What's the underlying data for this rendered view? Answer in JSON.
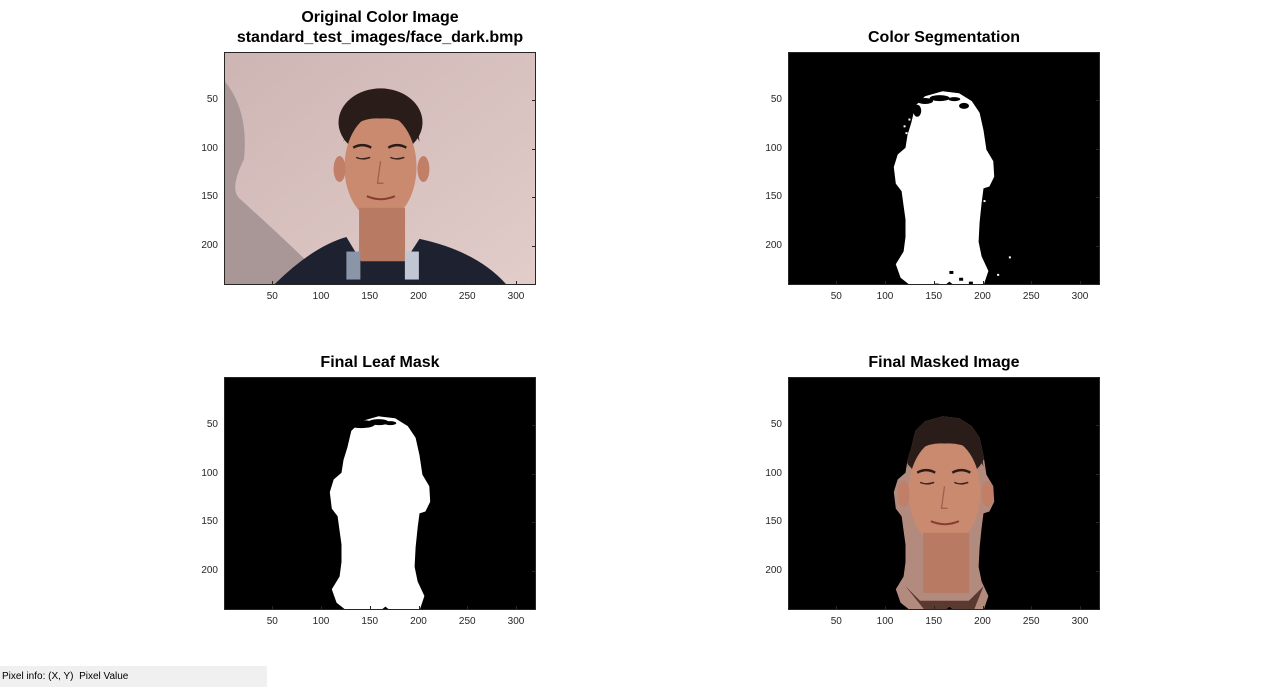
{
  "figure": {
    "panels": [
      {
        "id": "original",
        "title_lines": [
          "Original Color Image",
          "standard_test_images/face_dark.bmp"
        ],
        "kind": "photo"
      },
      {
        "id": "segmentation",
        "title_lines": [
          "Color Segmentation"
        ],
        "kind": "mask-noisy"
      },
      {
        "id": "leafmask",
        "title_lines": [
          "Final Leaf Mask"
        ],
        "kind": "mask-clean"
      },
      {
        "id": "masked",
        "title_lines": [
          "Final Masked Image"
        ],
        "kind": "masked-photo"
      }
    ],
    "x_ticks": [
      "50",
      "100",
      "150",
      "200",
      "250",
      "300"
    ],
    "y_ticks": [
      "50",
      "100",
      "150",
      "200"
    ],
    "colors": {
      "background_wall": "#d8c2c0",
      "mask_fg": "#ffffff",
      "mask_bg": "#000000",
      "skin": "#c98a70",
      "hair": "#2a1c18",
      "shirt": "#1e2230"
    }
  },
  "statusbar": {
    "text": "Pixel info: (X, Y)  Pixel Value"
  }
}
